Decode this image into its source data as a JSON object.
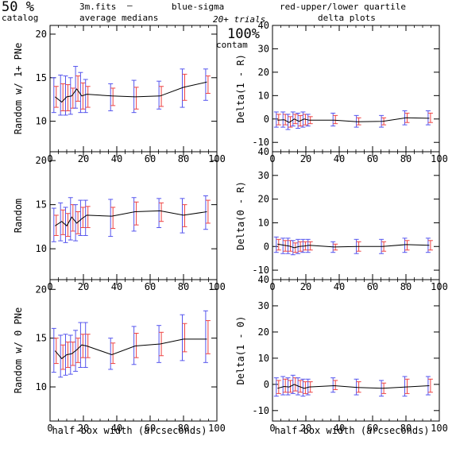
{
  "header": {
    "percent": "50 %",
    "catalog": "catalog",
    "file": "3m.fits",
    "dash": "—",
    "avg_medians": "average medians",
    "blue_sigma": "blue-sigma",
    "red_quartile": "red-upper/lower quartile",
    "trials": "20+ trials",
    "contam_pct": "100%",
    "contam": "contam",
    "delta_plots": "delta plots"
  },
  "colors": {
    "blue": "#5555ee",
    "red": "#ee4444",
    "line": "#000000"
  },
  "chart_data": [
    {
      "type": "line",
      "ylabel": "Random w/ 1+ PNe",
      "xlim": [
        0,
        100
      ],
      "ylim": [
        6.5,
        21
      ],
      "xticks": [
        0,
        20,
        40,
        60,
        80,
        100
      ],
      "yticks": [
        10,
        15,
        20
      ],
      "x": [
        3,
        7,
        10,
        13,
        16,
        19,
        22,
        37,
        51,
        66,
        80,
        94
      ],
      "y": [
        12.8,
        12.2,
        12.8,
        12.9,
        13.7,
        12.9,
        13.1,
        12.9,
        12.8,
        12.9,
        13.9,
        14.5
      ],
      "sigma_lo": [
        11.0,
        10.7,
        10.7,
        10.8,
        11.5,
        11.0,
        11.0,
        11.2,
        11.0,
        11.4,
        11.6,
        12.4
      ],
      "sigma_hi": [
        15.0,
        15.3,
        15.2,
        15.0,
        16.3,
        15.6,
        14.8,
        14.3,
        14.7,
        14.6,
        16.0,
        16.0
      ],
      "quart_lo": [
        11.6,
        11.2,
        11.2,
        11.5,
        12.3,
        11.4,
        11.6,
        11.8,
        11.4,
        11.7,
        12.4,
        13.2
      ],
      "quart_hi": [
        14.0,
        14.3,
        14.2,
        13.8,
        15.2,
        14.4,
        14.0,
        13.8,
        13.9,
        14.0,
        15.4,
        15.2
      ]
    },
    {
      "type": "line",
      "ylabel": "Delta(1 - R)",
      "xlim": [
        0,
        100
      ],
      "ylim": [
        -14,
        40
      ],
      "xticks": [
        0,
        20,
        40,
        60,
        80,
        100
      ],
      "yticks": [
        -10,
        0,
        10,
        20,
        30,
        40
      ],
      "x": [
        3,
        7,
        10,
        13,
        16,
        19,
        22,
        37,
        51,
        66,
        80,
        94
      ],
      "y": [
        -0.5,
        -0.3,
        -1.5,
        0.0,
        -1.0,
        0.0,
        -0.5,
        -0.5,
        -1.2,
        -1.0,
        0.5,
        0.3
      ],
      "sigma_lo": [
        -3.5,
        -3.5,
        -4.5,
        -3.0,
        -4.0,
        -3.5,
        -3.0,
        -3.0,
        -3.5,
        -3.5,
        -2.5,
        -2.5
      ],
      "sigma_hi": [
        3.0,
        3.0,
        2.0,
        3.0,
        2.5,
        3.0,
        2.0,
        2.5,
        1.5,
        1.5,
        3.5,
        3.5
      ],
      "quart_lo": [
        -2.5,
        -2.5,
        -3.5,
        -2.0,
        -3.0,
        -2.5,
        -2.0,
        -2.0,
        -2.5,
        -2.5,
        -1.5,
        -1.5
      ],
      "quart_hi": [
        2.0,
        2.0,
        1.0,
        2.0,
        1.5,
        2.0,
        1.0,
        1.5,
        0.5,
        0.5,
        2.5,
        2.5
      ]
    },
    {
      "type": "line",
      "ylabel": "Random",
      "xlim": [
        0,
        100
      ],
      "ylim": [
        6.5,
        21
      ],
      "xticks": [
        0,
        20,
        40,
        60,
        80,
        100
      ],
      "yticks": [
        10,
        15,
        20
      ],
      "x": [
        3,
        7,
        10,
        13,
        16,
        19,
        22,
        37,
        51,
        66,
        80,
        94
      ],
      "y": [
        12.6,
        13.1,
        12.6,
        13.6,
        12.9,
        13.4,
        13.8,
        13.7,
        14.2,
        14.3,
        13.8,
        14.2
      ],
      "sigma_lo": [
        10.8,
        10.9,
        10.7,
        11.0,
        10.9,
        11.5,
        11.5,
        11.4,
        12.0,
        12.4,
        11.8,
        12.2
      ],
      "sigma_hi": [
        14.6,
        15.2,
        14.7,
        15.8,
        15.0,
        15.5,
        15.5,
        15.6,
        15.8,
        15.7,
        15.7,
        16.0
      ],
      "quart_lo": [
        11.5,
        11.6,
        11.4,
        12.0,
        11.7,
        12.4,
        12.4,
        12.3,
        12.7,
        13.1,
        12.5,
        12.9
      ],
      "quart_hi": [
        13.8,
        14.4,
        14.0,
        15.0,
        14.2,
        14.7,
        14.8,
        14.7,
        15.3,
        15.2,
        15.0,
        15.5
      ]
    },
    {
      "type": "line",
      "ylabel": "Delta(0 - R)",
      "xlim": [
        0,
        100
      ],
      "ylim": [
        -14,
        40
      ],
      "xticks": [
        0,
        20,
        40,
        60,
        80,
        100
      ],
      "yticks": [
        -10,
        0,
        10,
        20,
        30,
        40
      ],
      "x": [
        3,
        7,
        10,
        13,
        16,
        19,
        22,
        37,
        51,
        66,
        80,
        94
      ],
      "y": [
        1.0,
        0.5,
        0.2,
        -0.5,
        0.0,
        0.2,
        0.5,
        -0.2,
        0.0,
        0.0,
        0.8,
        0.5
      ],
      "sigma_lo": [
        -2.5,
        -3.0,
        -3.0,
        -3.5,
        -3.0,
        -2.5,
        -2.5,
        -2.5,
        -3.0,
        -3.0,
        -2.5,
        -2.5
      ],
      "sigma_hi": [
        4.0,
        3.5,
        3.5,
        2.5,
        3.0,
        3.0,
        3.0,
        2.0,
        3.0,
        3.0,
        3.5,
        3.5
      ],
      "quart_lo": [
        -1.5,
        -2.0,
        -2.0,
        -2.5,
        -2.0,
        -1.5,
        -1.5,
        -1.5,
        -2.0,
        -2.0,
        -1.5,
        -1.5
      ],
      "quart_hi": [
        3.0,
        2.5,
        2.5,
        1.5,
        2.0,
        2.0,
        2.0,
        1.0,
        2.0,
        2.0,
        2.5,
        2.5
      ]
    },
    {
      "type": "line",
      "ylabel": "Random w/ 0 PNe",
      "xlim": [
        0,
        100
      ],
      "ylim": [
        6.5,
        21
      ],
      "xticks": [
        0,
        20,
        40,
        60,
        80,
        100
      ],
      "yticks": [
        10,
        15,
        20
      ],
      "x": [
        3,
        7,
        10,
        13,
        16,
        19,
        22,
        37,
        51,
        66,
        80,
        94
      ],
      "y": [
        13.7,
        12.9,
        13.3,
        13.4,
        13.8,
        14.3,
        14.2,
        13.3,
        14.2,
        14.4,
        14.9,
        14.9
      ],
      "sigma_lo": [
        11.5,
        11.0,
        11.2,
        11.3,
        11.6,
        12.0,
        12.0,
        11.8,
        12.3,
        12.5,
        12.7,
        12.5
      ],
      "sigma_hi": [
        16.0,
        15.3,
        15.4,
        15.3,
        15.8,
        16.6,
        16.6,
        15.0,
        16.2,
        16.3,
        17.4,
        17.8
      ],
      "quart_lo": [
        12.4,
        11.8,
        12.0,
        12.2,
        12.5,
        13.0,
        13.0,
        12.4,
        13.0,
        13.2,
        13.6,
        13.4
      ],
      "quart_hi": [
        15.0,
        14.3,
        14.6,
        14.6,
        15.0,
        15.4,
        15.4,
        14.5,
        15.5,
        15.6,
        16.5,
        16.8
      ]
    },
    {
      "type": "line",
      "ylabel": "Delta(1 - 0)",
      "xlabel": "half-box width (arcseconds)",
      "xlim": [
        0,
        100
      ],
      "ylim": [
        -14,
        40
      ],
      "xticks": [
        0,
        20,
        40,
        60,
        80,
        100
      ],
      "yticks": [
        -10,
        0,
        10,
        20,
        30,
        40
      ],
      "x": [
        3,
        7,
        10,
        13,
        16,
        19,
        22,
        37,
        51,
        66,
        80,
        94
      ],
      "y": [
        -1.5,
        -0.8,
        -1.0,
        0.0,
        -0.8,
        -1.5,
        -1.0,
        -0.5,
        -1.2,
        -1.5,
        -1.0,
        -0.5
      ],
      "sigma_lo": [
        -4.5,
        -4.0,
        -4.0,
        -3.5,
        -4.0,
        -4.5,
        -4.0,
        -3.0,
        -4.0,
        -4.5,
        -4.5,
        -4.0
      ],
      "sigma_hi": [
        2.5,
        3.0,
        2.5,
        3.5,
        2.5,
        2.0,
        2.0,
        2.5,
        2.0,
        1.5,
        3.0,
        3.0
      ],
      "quart_lo": [
        -3.5,
        -3.0,
        -3.0,
        -2.5,
        -3.0,
        -3.5,
        -3.0,
        -2.0,
        -3.0,
        -3.5,
        -3.5,
        -3.0
      ],
      "quart_hi": [
        1.5,
        2.0,
        1.5,
        2.5,
        1.5,
        1.0,
        1.0,
        1.5,
        1.0,
        0.5,
        2.0,
        2.0
      ]
    }
  ],
  "x_axis_label": "half-box width (arcseconds)"
}
